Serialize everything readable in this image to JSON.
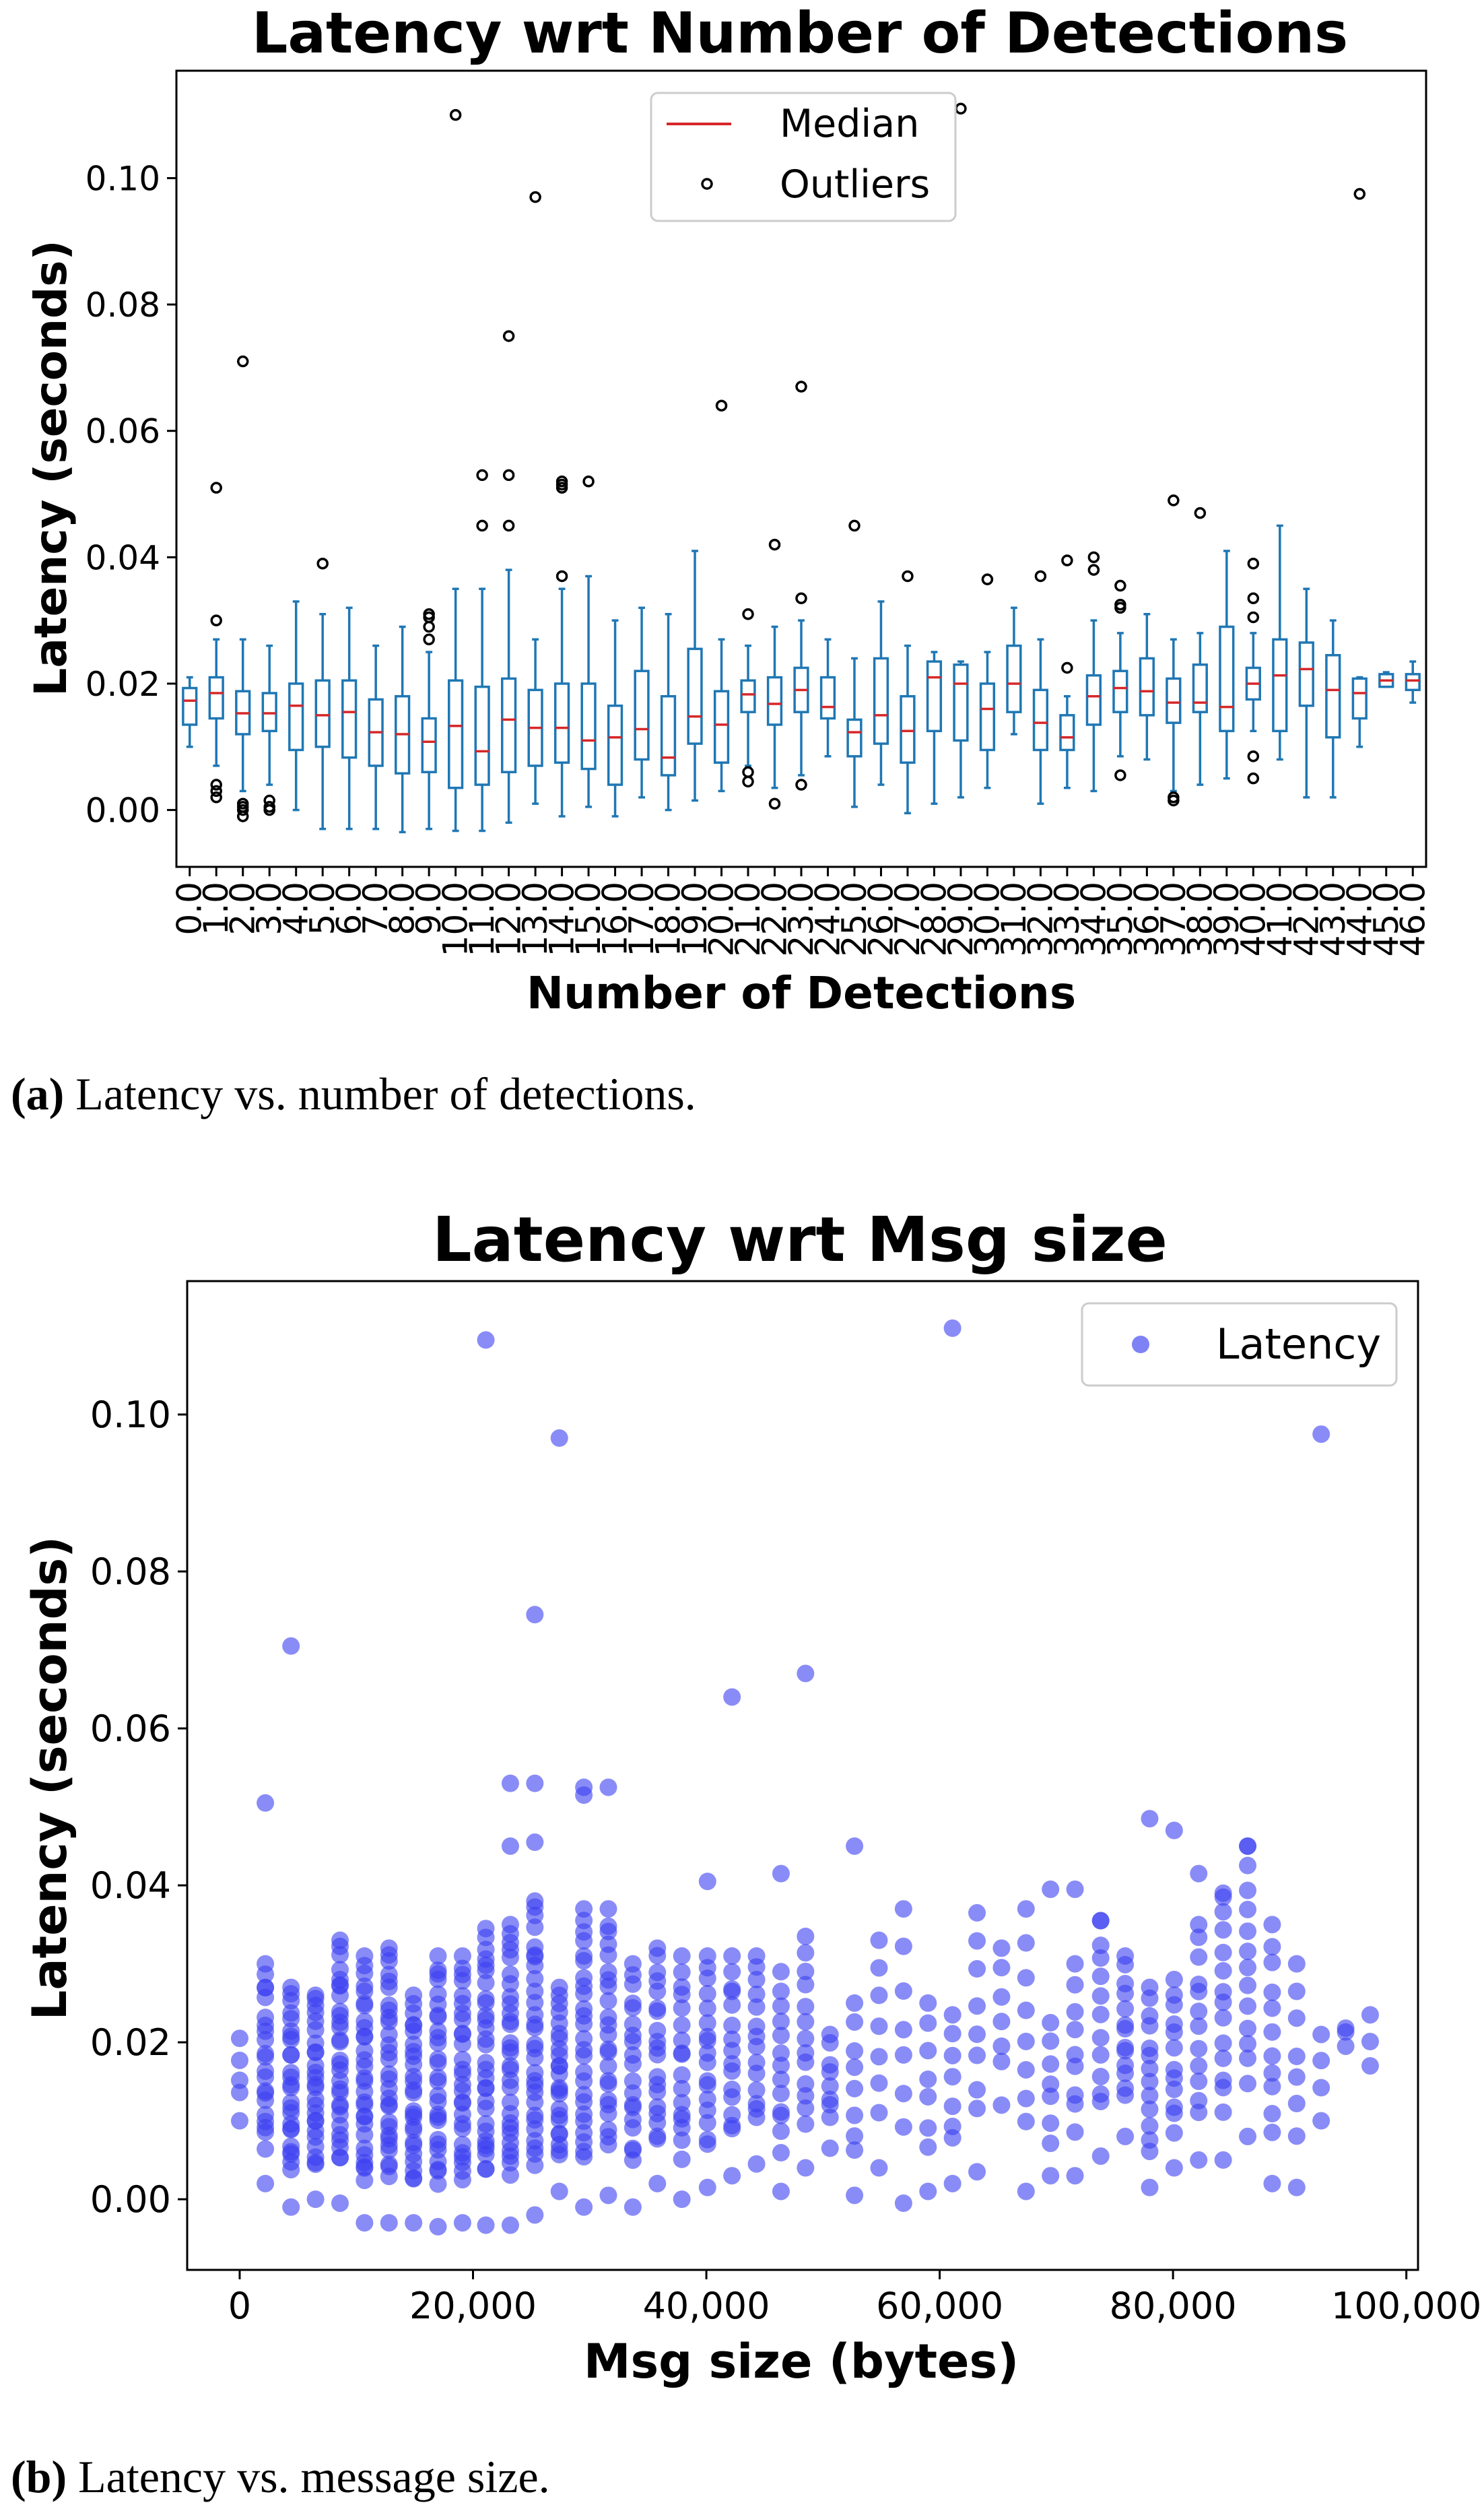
{
  "chart_data": [
    {
      "type": "box",
      "title": "Latency wrt Number of Detections",
      "xlabel": "Number of Detections",
      "ylabel": "Latency (seconds)",
      "ylim": [
        -0.009,
        0.117
      ],
      "yticks": [
        "0.00",
        "0.02",
        "0.04",
        "0.06",
        "0.08",
        "0.10"
      ],
      "ytick_values": [
        0.0,
        0.02,
        0.04,
        0.06,
        0.08,
        0.1
      ],
      "legend": {
        "position": "top-center",
        "median_label": "Median",
        "outliers_label": "Outliers"
      },
      "colors": {
        "box": "#1f77b4",
        "median": "#d62728",
        "outlier": "#000000"
      },
      "categories": [
        "0.0",
        "1.0",
        "2.0",
        "3.0",
        "4.0",
        "5.0",
        "6.0",
        "7.0",
        "8.0",
        "9.0",
        "10.0",
        "11.0",
        "12.0",
        "13.0",
        "14.0",
        "15.0",
        "16.0",
        "17.0",
        "18.0",
        "19.0",
        "20.0",
        "21.0",
        "22.0",
        "23.0",
        "24.0",
        "25.0",
        "26.0",
        "27.0",
        "28.0",
        "29.0",
        "30.0",
        "31.0",
        "32.0",
        "33.0",
        "34.0",
        "35.0",
        "36.0",
        "37.0",
        "38.0",
        "39.0",
        "40.0",
        "41.0",
        "42.0",
        "43.0",
        "44.0",
        "45.0",
        "46.0"
      ],
      "boxes": [
        {
          "low": 0.01,
          "q1": 0.0135,
          "median": 0.0173,
          "q3": 0.0193,
          "high": 0.021,
          "outliers": []
        },
        {
          "low": 0.007,
          "q1": 0.0145,
          "median": 0.0185,
          "q3": 0.021,
          "high": 0.027,
          "outliers": [
            0.051,
            0.03,
            0.004,
            0.003,
            0.002
          ]
        },
        {
          "low": 0.003,
          "q1": 0.012,
          "median": 0.0153,
          "q3": 0.0188,
          "high": 0.027,
          "outliers": [
            0.071,
            0.001,
            0.0005,
            0.0,
            -0.001
          ]
        },
        {
          "low": 0.004,
          "q1": 0.0125,
          "median": 0.0153,
          "q3": 0.0185,
          "high": 0.026,
          "outliers": [
            0.0015,
            0.0005,
            0.0
          ]
        },
        {
          "low": 0.0,
          "q1": 0.0095,
          "median": 0.0165,
          "q3": 0.02,
          "high": 0.033,
          "outliers": []
        },
        {
          "low": -0.003,
          "q1": 0.01,
          "median": 0.015,
          "q3": 0.0205,
          "high": 0.031,
          "outliers": [
            0.039
          ]
        },
        {
          "low": -0.003,
          "q1": 0.0083,
          "median": 0.0155,
          "q3": 0.0205,
          "high": 0.032,
          "outliers": []
        },
        {
          "low": -0.003,
          "q1": 0.007,
          "median": 0.0123,
          "q3": 0.0175,
          "high": 0.026,
          "outliers": []
        },
        {
          "low": -0.0035,
          "q1": 0.0058,
          "median": 0.012,
          "q3": 0.018,
          "high": 0.029,
          "outliers": []
        },
        {
          "low": -0.003,
          "q1": 0.006,
          "median": 0.0108,
          "q3": 0.0145,
          "high": 0.025,
          "outliers": [
            0.031,
            0.0305,
            0.029,
            0.027
          ]
        },
        {
          "low": -0.0033,
          "q1": 0.0035,
          "median": 0.0133,
          "q3": 0.0205,
          "high": 0.035,
          "outliers": [
            0.11
          ]
        },
        {
          "low": -0.0033,
          "q1": 0.004,
          "median": 0.0093,
          "q3": 0.0195,
          "high": 0.035,
          "outliers": [
            0.053,
            0.045
          ]
        },
        {
          "low": -0.002,
          "q1": 0.006,
          "median": 0.0143,
          "q3": 0.0208,
          "high": 0.038,
          "outliers": [
            0.075,
            0.053,
            0.045
          ]
        },
        {
          "low": 0.001,
          "q1": 0.007,
          "median": 0.013,
          "q3": 0.019,
          "high": 0.027,
          "outliers": [
            0.097
          ]
        },
        {
          "low": -0.001,
          "q1": 0.0075,
          "median": 0.013,
          "q3": 0.02,
          "high": 0.035,
          "outliers": [
            0.052,
            0.0515,
            0.051,
            0.037
          ]
        },
        {
          "low": 0.0005,
          "q1": 0.0065,
          "median": 0.011,
          "q3": 0.02,
          "high": 0.037,
          "outliers": [
            0.052
          ]
        },
        {
          "low": -0.001,
          "q1": 0.004,
          "median": 0.0115,
          "q3": 0.0165,
          "high": 0.03,
          "outliers": []
        },
        {
          "low": 0.002,
          "q1": 0.008,
          "median": 0.0128,
          "q3": 0.022,
          "high": 0.032,
          "outliers": []
        },
        {
          "low": 0.0,
          "q1": 0.0055,
          "median": 0.0083,
          "q3": 0.018,
          "high": 0.031,
          "outliers": []
        },
        {
          "low": 0.0015,
          "q1": 0.0105,
          "median": 0.0148,
          "q3": 0.0255,
          "high": 0.041,
          "outliers": []
        },
        {
          "low": 0.003,
          "q1": 0.0075,
          "median": 0.0135,
          "q3": 0.0188,
          "high": 0.027,
          "outliers": [
            0.064
          ]
        },
        {
          "low": 0.007,
          "q1": 0.0155,
          "median": 0.0183,
          "q3": 0.0205,
          "high": 0.026,
          "outliers": [
            0.031,
            0.006,
            0.0045
          ]
        },
        {
          "low": 0.0035,
          "q1": 0.0135,
          "median": 0.0168,
          "q3": 0.021,
          "high": 0.029,
          "outliers": [
            0.042,
            0.001
          ]
        },
        {
          "low": 0.0055,
          "q1": 0.0155,
          "median": 0.019,
          "q3": 0.0225,
          "high": 0.03,
          "outliers": [
            0.067,
            0.0335,
            0.004
          ]
        },
        {
          "low": 0.0085,
          "q1": 0.0145,
          "median": 0.0163,
          "q3": 0.021,
          "high": 0.027,
          "outliers": []
        },
        {
          "low": 0.0005,
          "q1": 0.0085,
          "median": 0.0123,
          "q3": 0.0143,
          "high": 0.024,
          "outliers": [
            0.045
          ]
        },
        {
          "low": 0.004,
          "q1": 0.0105,
          "median": 0.015,
          "q3": 0.024,
          "high": 0.033,
          "outliers": []
        },
        {
          "low": -0.0005,
          "q1": 0.0075,
          "median": 0.0125,
          "q3": 0.018,
          "high": 0.026,
          "outliers": [
            0.037
          ]
        },
        {
          "low": 0.001,
          "q1": 0.0125,
          "median": 0.021,
          "q3": 0.0235,
          "high": 0.025,
          "outliers": []
        },
        {
          "low": 0.002,
          "q1": 0.011,
          "median": 0.02,
          "q3": 0.023,
          "high": 0.0235,
          "outliers": [
            0.111
          ]
        },
        {
          "low": 0.0035,
          "q1": 0.0095,
          "median": 0.016,
          "q3": 0.02,
          "high": 0.025,
          "outliers": [
            0.0365
          ]
        },
        {
          "low": 0.012,
          "q1": 0.0155,
          "median": 0.02,
          "q3": 0.026,
          "high": 0.032,
          "outliers": []
        },
        {
          "low": 0.001,
          "q1": 0.0095,
          "median": 0.0138,
          "q3": 0.019,
          "high": 0.027,
          "outliers": [
            0.037
          ]
        },
        {
          "low": 0.0035,
          "q1": 0.0095,
          "median": 0.0115,
          "q3": 0.015,
          "high": 0.018,
          "outliers": [
            0.0225,
            0.0395
          ]
        },
        {
          "low": 0.003,
          "q1": 0.0135,
          "median": 0.018,
          "q3": 0.0213,
          "high": 0.03,
          "outliers": [
            0.04,
            0.038
          ]
        },
        {
          "low": 0.0085,
          "q1": 0.0155,
          "median": 0.0193,
          "q3": 0.022,
          "high": 0.028,
          "outliers": [
            0.0355,
            0.0325,
            0.032,
            0.0055
          ]
        },
        {
          "low": 0.008,
          "q1": 0.015,
          "median": 0.0188,
          "q3": 0.024,
          "high": 0.031,
          "outliers": []
        },
        {
          "low": 0.003,
          "q1": 0.0138,
          "median": 0.017,
          "q3": 0.0208,
          "high": 0.027,
          "outliers": [
            0.049,
            0.002,
            0.0015
          ]
        },
        {
          "low": 0.004,
          "q1": 0.0155,
          "median": 0.017,
          "q3": 0.023,
          "high": 0.028,
          "outliers": [
            0.047
          ]
        },
        {
          "low": 0.005,
          "q1": 0.0125,
          "median": 0.0163,
          "q3": 0.029,
          "high": 0.041,
          "outliers": []
        },
        {
          "low": 0.0125,
          "q1": 0.0175,
          "median": 0.02,
          "q3": 0.0225,
          "high": 0.028,
          "outliers": [
            0.039,
            0.0335,
            0.0305,
            0.0085,
            0.005
          ]
        },
        {
          "low": 0.008,
          "q1": 0.0125,
          "median": 0.0213,
          "q3": 0.027,
          "high": 0.045,
          "outliers": []
        },
        {
          "low": 0.002,
          "q1": 0.0165,
          "median": 0.0223,
          "q3": 0.0265,
          "high": 0.035,
          "outliers": []
        },
        {
          "low": 0.002,
          "q1": 0.0115,
          "median": 0.019,
          "q3": 0.0245,
          "high": 0.03,
          "outliers": []
        },
        {
          "low": 0.01,
          "q1": 0.0145,
          "median": 0.0185,
          "q3": 0.0208,
          "high": 0.021,
          "outliers": [
            0.0975
          ]
        },
        {
          "low": 0.0195,
          "q1": 0.0195,
          "median": 0.0205,
          "q3": 0.0215,
          "high": 0.0218,
          "outliers": []
        },
        {
          "low": 0.017,
          "q1": 0.019,
          "median": 0.0205,
          "q3": 0.0215,
          "high": 0.0235,
          "outliers": []
        }
      ]
    },
    {
      "type": "scatter",
      "title": "Latency wrt Msg size",
      "xlabel": "Msg size (bytes)",
      "ylabel": "Latency (seconds)",
      "xlim": [
        -4500,
        101000
      ],
      "ylim": [
        -0.009,
        0.117
      ],
      "xticks": [
        "0",
        "20,000",
        "40,000",
        "60,000",
        "80,000",
        "100,000"
      ],
      "xtick_values": [
        0,
        20000,
        40000,
        60000,
        80000,
        100000
      ],
      "yticks": [
        "0.00",
        "0.02",
        "0.04",
        "0.06",
        "0.08",
        "0.10"
      ],
      "ytick_values": [
        0.0,
        0.02,
        0.04,
        0.06,
        0.08,
        0.1
      ],
      "legend": {
        "position": "top-right",
        "label": "Latency"
      },
      "colors": {
        "point": "#3a3ff0"
      },
      "outlier_points": [
        {
          "x": 2200,
          "y": 0.0505
        },
        {
          "x": 4400,
          "y": 0.0705
        },
        {
          "x": 21100,
          "y": 0.1095
        },
        {
          "x": 23200,
          "y": 0.053
        },
        {
          "x": 23200,
          "y": 0.045
        },
        {
          "x": 25300,
          "y": 0.0745
        },
        {
          "x": 25300,
          "y": 0.053
        },
        {
          "x": 25300,
          "y": 0.0455
        },
        {
          "x": 27400,
          "y": 0.097
        },
        {
          "x": 29500,
          "y": 0.0525
        },
        {
          "x": 29500,
          "y": 0.0515
        },
        {
          "x": 31600,
          "y": 0.0525
        },
        {
          "x": 42200,
          "y": 0.064
        },
        {
          "x": 48500,
          "y": 0.067
        },
        {
          "x": 52700,
          "y": 0.045
        },
        {
          "x": 61100,
          "y": 0.111
        },
        {
          "x": 78000,
          "y": 0.0485
        },
        {
          "x": 80100,
          "y": 0.047
        },
        {
          "x": 86400,
          "y": 0.045
        },
        {
          "x": 92700,
          "y": 0.0975
        },
        {
          "x": 46400,
          "y": 0.0415
        },
        {
          "x": 40100,
          "y": 0.0405
        },
        {
          "x": 69500,
          "y": 0.0395
        },
        {
          "x": 71600,
          "y": 0.0395
        },
        {
          "x": 73800,
          "y": 0.0355
        },
        {
          "x": 82200,
          "y": 0.0415
        },
        {
          "x": 84300,
          "y": 0.0385
        }
      ],
      "columns": [
        {
          "x": 0,
          "low": 0.01,
          "high": 0.0205,
          "n": 5
        },
        {
          "x": 2200,
          "low": 0.002,
          "high": 0.03,
          "n": 22
        },
        {
          "x": 4400,
          "low": -0.001,
          "high": 0.027,
          "n": 26
        },
        {
          "x": 6500,
          "low": 0.0,
          "high": 0.026,
          "n": 26
        },
        {
          "x": 8600,
          "low": -0.0005,
          "high": 0.033,
          "n": 30
        },
        {
          "x": 10700,
          "low": -0.003,
          "high": 0.031,
          "n": 30
        },
        {
          "x": 12800,
          "low": -0.003,
          "high": 0.032,
          "n": 30
        },
        {
          "x": 14900,
          "low": -0.003,
          "high": 0.026,
          "n": 27
        },
        {
          "x": 17000,
          "low": -0.0035,
          "high": 0.031,
          "n": 28
        },
        {
          "x": 19100,
          "low": -0.003,
          "high": 0.031,
          "n": 28
        },
        {
          "x": 21100,
          "low": -0.0033,
          "high": 0.0345,
          "n": 30
        },
        {
          "x": 23200,
          "low": -0.0033,
          "high": 0.035,
          "n": 30
        },
        {
          "x": 25300,
          "low": -0.002,
          "high": 0.038,
          "n": 30
        },
        {
          "x": 27400,
          "low": 0.001,
          "high": 0.027,
          "n": 24
        },
        {
          "x": 29500,
          "low": -0.001,
          "high": 0.037,
          "n": 26
        },
        {
          "x": 31600,
          "low": 0.0005,
          "high": 0.037,
          "n": 24
        },
        {
          "x": 33700,
          "low": -0.001,
          "high": 0.03,
          "n": 20
        },
        {
          "x": 35800,
          "low": 0.002,
          "high": 0.032,
          "n": 20
        },
        {
          "x": 37900,
          "low": 0.0,
          "high": 0.031,
          "n": 18
        },
        {
          "x": 40100,
          "low": 0.0015,
          "high": 0.031,
          "n": 18
        },
        {
          "x": 42200,
          "low": 0.003,
          "high": 0.031,
          "n": 16
        },
        {
          "x": 44300,
          "low": 0.0045,
          "high": 0.031,
          "n": 15
        },
        {
          "x": 46400,
          "low": 0.001,
          "high": 0.029,
          "n": 14
        },
        {
          "x": 48500,
          "low": 0.004,
          "high": 0.0335,
          "n": 14
        },
        {
          "x": 50600,
          "low": 0.0065,
          "high": 0.021,
          "n": 9
        },
        {
          "x": 52700,
          "low": 0.0005,
          "high": 0.025,
          "n": 9
        },
        {
          "x": 54800,
          "low": 0.004,
          "high": 0.033,
          "n": 8
        },
        {
          "x": 56900,
          "low": -0.0005,
          "high": 0.037,
          "n": 8
        },
        {
          "x": 59000,
          "low": 0.001,
          "high": 0.025,
          "n": 8
        },
        {
          "x": 61100,
          "low": 0.002,
          "high": 0.0235,
          "n": 8
        },
        {
          "x": 63200,
          "low": 0.0035,
          "high": 0.0365,
          "n": 9
        },
        {
          "x": 65300,
          "low": 0.012,
          "high": 0.032,
          "n": 7
        },
        {
          "x": 67400,
          "low": 0.001,
          "high": 0.037,
          "n": 9
        },
        {
          "x": 69500,
          "low": 0.003,
          "high": 0.0225,
          "n": 8
        },
        {
          "x": 71600,
          "low": 0.003,
          "high": 0.03,
          "n": 10
        },
        {
          "x": 73800,
          "low": 0.0055,
          "high": 0.0355,
          "n": 12
        },
        {
          "x": 75900,
          "low": 0.008,
          "high": 0.031,
          "n": 14
        },
        {
          "x": 78000,
          "low": 0.0015,
          "high": 0.027,
          "n": 14
        },
        {
          "x": 80100,
          "low": 0.004,
          "high": 0.028,
          "n": 13
        },
        {
          "x": 82200,
          "low": 0.005,
          "high": 0.035,
          "n": 13
        },
        {
          "x": 84300,
          "low": 0.005,
          "high": 0.039,
          "n": 14
        },
        {
          "x": 86400,
          "low": 0.008,
          "high": 0.045,
          "n": 14
        },
        {
          "x": 88500,
          "low": 0.002,
          "high": 0.035,
          "n": 12
        },
        {
          "x": 90600,
          "low": 0.0015,
          "high": 0.03,
          "n": 8
        },
        {
          "x": 92700,
          "low": 0.01,
          "high": 0.021,
          "n": 4
        },
        {
          "x": 94800,
          "low": 0.0195,
          "high": 0.0218,
          "n": 3
        },
        {
          "x": 96900,
          "low": 0.017,
          "high": 0.0235,
          "n": 3
        }
      ]
    }
  ],
  "captions": {
    "a": {
      "label": "(a)",
      "text": " Latency vs. number of detections."
    },
    "b": {
      "label": "(b)",
      "text": " Latency vs. message size."
    }
  }
}
